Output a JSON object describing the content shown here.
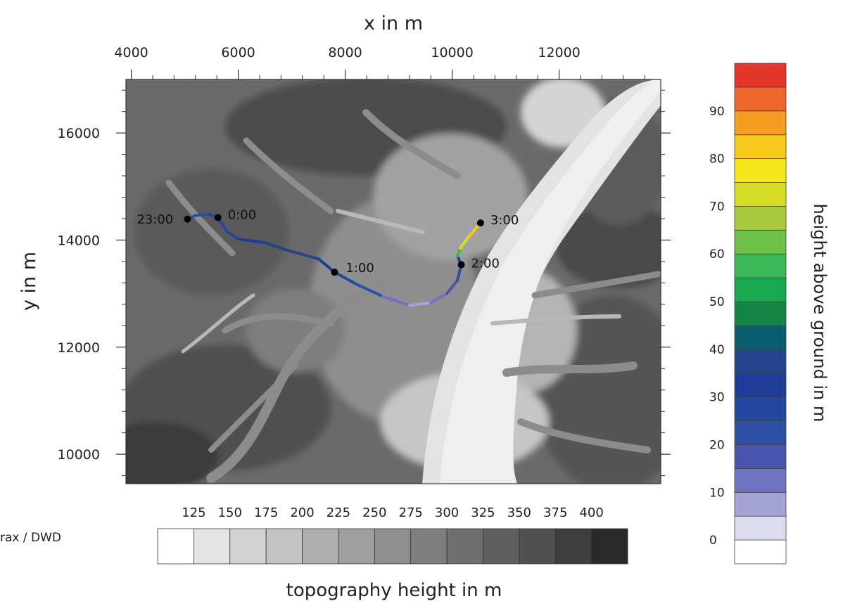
{
  "credit": "rax / DWD",
  "chart_data": {
    "type": "trajectory-map",
    "title": "",
    "xlabel": "x in m",
    "ylabel": "y in m",
    "xlim": [
      3900,
      13900
    ],
    "ylim": [
      9450,
      17000
    ],
    "xticks": [
      4000,
      6000,
      8000,
      10000,
      12000
    ],
    "yticks": [
      10000,
      12000,
      14000,
      16000
    ],
    "xtick_labels": [
      "4000",
      "6000",
      "8000",
      "10000",
      "12000"
    ],
    "ytick_labels": [
      "10000",
      "12000",
      "14000",
      "16000"
    ],
    "background": {
      "label": "topography height in m",
      "levels": [
        125,
        150,
        175,
        200,
        225,
        250,
        275,
        300,
        325,
        350,
        375,
        400
      ],
      "level_labels": [
        "125",
        "150",
        "175",
        "200",
        "225",
        "250",
        "275",
        "300",
        "325",
        "350",
        "375",
        "400"
      ],
      "colors": [
        "#ffffff",
        "#e4e4e4",
        "#d3d3d3",
        "#c3c3c3",
        "#b0b0b0",
        "#9f9f9f",
        "#8f8f8f",
        "#7f7f7f",
        "#6f6f6f",
        "#5f5f5f",
        "#4f4f4f",
        "#3d3d3d",
        "#2a2a2a"
      ]
    },
    "trajectory": {
      "color_label": "height above ground in m",
      "points": [
        {
          "x": 5050,
          "y": 14390,
          "h": 22
        },
        {
          "x": 5200,
          "y": 14460,
          "h": 22
        },
        {
          "x": 5450,
          "y": 14480,
          "h": 24
        },
        {
          "x": 5620,
          "y": 14420,
          "h": 26
        },
        {
          "x": 5800,
          "y": 14150,
          "h": 28
        },
        {
          "x": 6000,
          "y": 14020,
          "h": 30
        },
        {
          "x": 6500,
          "y": 13950,
          "h": 36
        },
        {
          "x": 6950,
          "y": 13800,
          "h": 40
        },
        {
          "x": 7500,
          "y": 13650,
          "h": 36
        },
        {
          "x": 7800,
          "y": 13400,
          "h": 30
        },
        {
          "x": 8200,
          "y": 13180,
          "h": 24
        },
        {
          "x": 8700,
          "y": 12950,
          "h": 16
        },
        {
          "x": 9200,
          "y": 12780,
          "h": 8
        },
        {
          "x": 9600,
          "y": 12830,
          "h": 8
        },
        {
          "x": 9900,
          "y": 13000,
          "h": 12
        },
        {
          "x": 10100,
          "y": 13250,
          "h": 18
        },
        {
          "x": 10170,
          "y": 13540,
          "h": 25
        },
        {
          "x": 10100,
          "y": 13700,
          "h": 50
        },
        {
          "x": 10150,
          "y": 13850,
          "h": 66
        },
        {
          "x": 10300,
          "y": 14050,
          "h": 75
        },
        {
          "x": 10530,
          "y": 14320,
          "h": 88
        }
      ],
      "markers": [
        {
          "label": "23:00",
          "x": 5050,
          "y": 14390
        },
        {
          "label": "0:00",
          "x": 5620,
          "y": 14420
        },
        {
          "label": "1:00",
          "x": 7800,
          "y": 13400
        },
        {
          "label": "2:00",
          "x": 10170,
          "y": 13540
        },
        {
          "label": "3:00",
          "x": 10530,
          "y": 14320
        }
      ]
    },
    "colorbar": {
      "label": "height above ground in m",
      "boundaries": [
        0,
        5,
        10,
        15,
        20,
        25,
        30,
        35,
        40,
        45,
        50,
        55,
        60,
        65,
        70,
        75,
        80,
        85,
        90,
        95
      ],
      "tick_values": [
        0,
        10,
        20,
        30,
        40,
        50,
        60,
        70,
        80,
        90
      ],
      "tick_labels": [
        "0",
        "10",
        "20",
        "30",
        "40",
        "50",
        "60",
        "70",
        "80",
        "90"
      ],
      "colors": [
        "#ffffff",
        "#dcdcee",
        "#a3a3d5",
        "#6f74c0",
        "#4a55ad",
        "#2d50a5",
        "#2447a0",
        "#1e3d98",
        "#22448d",
        "#0a5f6e",
        "#148545",
        "#18a84f",
        "#3db856",
        "#6ec049",
        "#a8c93e",
        "#d7dd26",
        "#f4e81a",
        "#f6c91b",
        "#f59c22",
        "#ee6629",
        "#e3362a"
      ]
    }
  }
}
